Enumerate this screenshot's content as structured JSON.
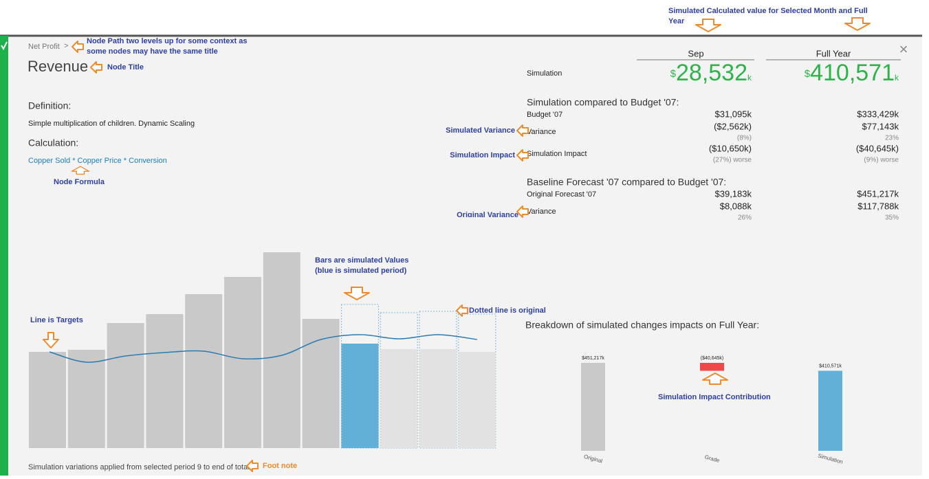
{
  "annotations": {
    "top": [
      "Simulated Calculated value for Selected Month and Full",
      "Year"
    ],
    "node_path": [
      "Node Path two levels up for some context as",
      "some nodes may have the same title"
    ],
    "node_title": "Node Title",
    "node_formula": "Node Formula",
    "simulated_variance": "Simulated Variance",
    "simulation_impact": "Simulation Impact",
    "original_variance": "Original Variance",
    "bars": [
      "Bars are simulated Values",
      "(blue is simulated period)"
    ],
    "dotted": "Dotted line is original",
    "line": "Line is Targets",
    "impact_contribution": "Simulation Impact Contribution",
    "foot_note": "Foot note"
  },
  "header": {
    "breadcrumb": "Net Profit",
    "separator": ">",
    "title": "Revenue",
    "close": "×"
  },
  "definition": {
    "heading": "Definition:",
    "text": "Simple multiplication of children. Dynamic Scaling"
  },
  "calculation": {
    "heading": "Calculation:",
    "formula": "Copper Sold * Copper Price * Conversion"
  },
  "columns": [
    "Sep",
    "Full Year"
  ],
  "simulation": {
    "label": "Simulation",
    "cells": [
      {
        "prefix": "$",
        "number": "28,532",
        "suffix": "k"
      },
      {
        "prefix": "$",
        "number": "410,571",
        "suffix": "k"
      }
    ]
  },
  "budget_section": {
    "heading": "Simulation compared to Budget '07:",
    "rows": [
      {
        "label": "Budget '07",
        "values": [
          "$31,095k",
          "$333,429k"
        ],
        "notes": [
          null,
          null
        ]
      },
      {
        "label": "Variance",
        "values": [
          "($2,562k)",
          "$77,143k"
        ],
        "notes": [
          "(8%)",
          "23%"
        ]
      },
      {
        "label": "Simulation Impact",
        "values": [
          "($10,650k)",
          "($40,645k)"
        ],
        "notes": [
          "(27%) worse",
          "(9%) worse"
        ]
      }
    ]
  },
  "baseline_section": {
    "heading": "Baseline Forecast '07 compared to Budget '07:",
    "rows": [
      {
        "label": "Original Forecast '07",
        "values": [
          "$39,183k",
          "$451,217k"
        ],
        "notes": [
          null,
          null
        ]
      },
      {
        "label": "Variance",
        "values": [
          "$8,088k",
          "$117,788k"
        ],
        "notes": [
          "26%",
          "35%"
        ]
      }
    ]
  },
  "footnote": "Simulation variations applied from selected period 9 to end of total",
  "chart_data": [
    {
      "type": "bar",
      "values": [
        140,
        143,
        182,
        195,
        224,
        249,
        285,
        188,
        152,
        144,
        144,
        140
      ],
      "colors": [
        "#c9c9c9",
        "#c9c9c9",
        "#c9c9c9",
        "#c9c9c9",
        "#c9c9c9",
        "#c9c9c9",
        "#c9c9c9",
        "#c9c9c9",
        "#62b0d8",
        "#e2e2e2",
        "#e2e2e2",
        "#e2e2e2"
      ],
      "original": [
        null,
        null,
        null,
        null,
        null,
        null,
        null,
        null,
        209,
        197,
        199,
        195
      ],
      "original_color": "#7fb6d8",
      "targets": [
        140,
        125,
        134,
        139,
        141,
        130,
        135,
        158,
        165,
        159,
        165,
        158
      ],
      "targets_color": "#2a7ab0"
    },
    {
      "type": "waterfall",
      "title": "Breakdown of simulated changes impacts on Full Year:",
      "categories": [
        "Original",
        "Grade",
        "Simulation"
      ],
      "values": [
        451217,
        -40645,
        410571
      ],
      "value_labels": [
        "$451,217k",
        "($40,645k)",
        "$410,571k"
      ],
      "colors": [
        "#c9c9c9",
        "#f04848",
        "#62b0d8"
      ]
    }
  ]
}
